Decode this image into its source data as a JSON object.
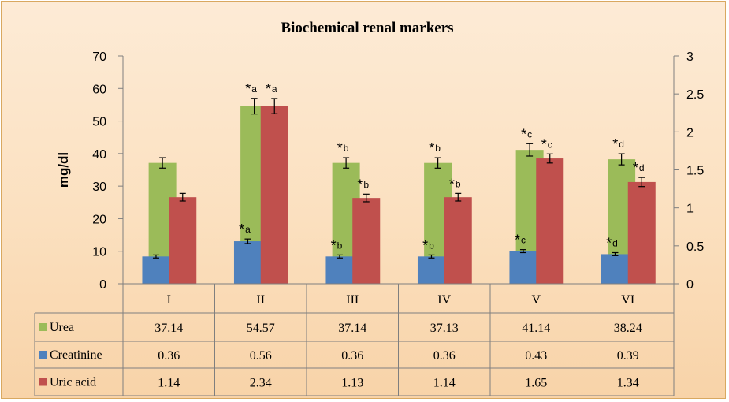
{
  "chart_data": {
    "type": "bar",
    "title": "Biochemical renal markers",
    "ylabel": "mg/dl",
    "y_left": {
      "min": 0,
      "max": 70,
      "ticks": [
        "0",
        "10",
        "20",
        "30",
        "40",
        "50",
        "60",
        "70"
      ]
    },
    "y_right": {
      "min": 0,
      "max": 3,
      "ticks": [
        "0",
        "0.5",
        "1",
        "1.5",
        "2",
        "2.5",
        "3"
      ]
    },
    "categories": [
      "I",
      "II",
      "III",
      "IV",
      "V",
      "VI"
    ],
    "series": [
      {
        "name": "Urea",
        "color": "#9bbb59",
        "axis": "left",
        "values": [
          37.14,
          54.57,
          37.14,
          37.13,
          41.14,
          38.24
        ],
        "labels": [
          "37.14",
          "54.57",
          "37.14",
          "37.13",
          "41.14",
          "38.24"
        ],
        "errors": [
          1.6,
          2.4,
          1.6,
          1.6,
          1.9,
          1.7
        ],
        "sig": [
          "",
          "*a",
          "*b",
          "*b",
          "*c",
          "*d"
        ]
      },
      {
        "name": "Creatinine",
        "color": "#4f81bd",
        "axis": "right",
        "values": [
          0.36,
          0.56,
          0.36,
          0.36,
          0.43,
          0.39
        ],
        "labels": [
          "0.36",
          "0.56",
          "0.36",
          "0.36",
          "0.43",
          "0.39"
        ],
        "errors": [
          0.02,
          0.03,
          0.02,
          0.02,
          0.02,
          0.02
        ],
        "sig": [
          "",
          "*a",
          "*b",
          "*b",
          "*c",
          "*d"
        ]
      },
      {
        "name": "Uric acid",
        "color": "#c0504d",
        "axis": "right",
        "values": [
          1.14,
          2.34,
          1.13,
          1.14,
          1.65,
          1.34
        ],
        "labels": [
          "1.14",
          "2.34",
          "1.13",
          "1.14",
          "1.65",
          "1.34"
        ],
        "errors": [
          0.05,
          0.1,
          0.05,
          0.05,
          0.06,
          0.06
        ],
        "sig": [
          "",
          "*a",
          "*b",
          "*b",
          "*c",
          "*d"
        ]
      }
    ],
    "legend": "data-table",
    "grid": false
  }
}
